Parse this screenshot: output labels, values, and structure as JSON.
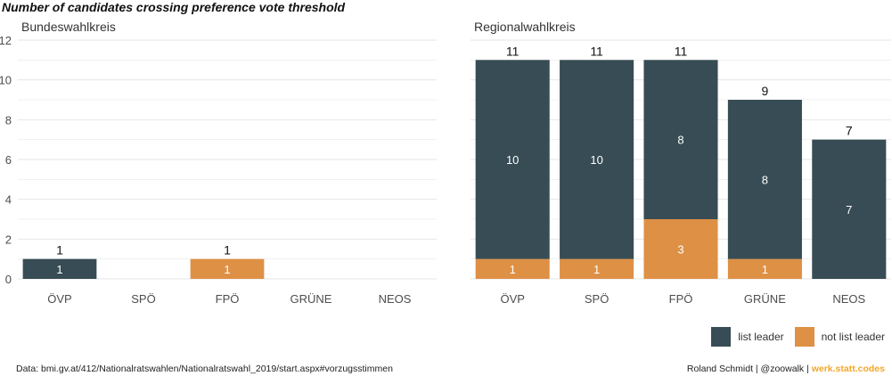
{
  "title": "Number of candidates crossing preference vote threshold",
  "colors": {
    "list_leader": "#374c54",
    "not_list_leader": "#de9045",
    "grid": "#e6e6e6",
    "axis_text": "#4d4d4d"
  },
  "legend": {
    "items": [
      "list leader",
      "not list leader"
    ]
  },
  "caption": {
    "source": "Data: bmi.gv.at/412/Nationalratswahlen/Nationalratswahl_2019/start.aspx#vorzugsstimmen",
    "author": "Roland Schmidt | @zoowalk | ",
    "brand": "werk.statt.codes"
  },
  "chart_data": [
    {
      "type": "bar",
      "stacked": true,
      "title": "Bundeswahlkreis",
      "categories": [
        "ÖVP",
        "SPÖ",
        "FPÖ",
        "GRÜNE",
        "NEOS"
      ],
      "series": [
        {
          "name": "not list leader",
          "values": [
            0,
            0,
            1,
            0,
            0
          ]
        },
        {
          "name": "list leader",
          "values": [
            1,
            0,
            0,
            0,
            0
          ]
        }
      ],
      "totals": [
        1,
        0,
        1,
        0,
        0
      ],
      "ylim": [
        0,
        12
      ],
      "yticks": [
        0,
        2,
        4,
        6,
        8,
        10,
        12
      ],
      "grid": true
    },
    {
      "type": "bar",
      "stacked": true,
      "title": "Regionalwahlkreis",
      "categories": [
        "ÖVP",
        "SPÖ",
        "FPÖ",
        "GRÜNE",
        "NEOS"
      ],
      "series": [
        {
          "name": "not list leader",
          "values": [
            1,
            1,
            3,
            1,
            0
          ]
        },
        {
          "name": "list leader",
          "values": [
            10,
            10,
            8,
            8,
            7
          ]
        }
      ],
      "totals": [
        11,
        11,
        11,
        9,
        7
      ],
      "ylim": [
        0,
        12
      ],
      "grid": true
    }
  ]
}
